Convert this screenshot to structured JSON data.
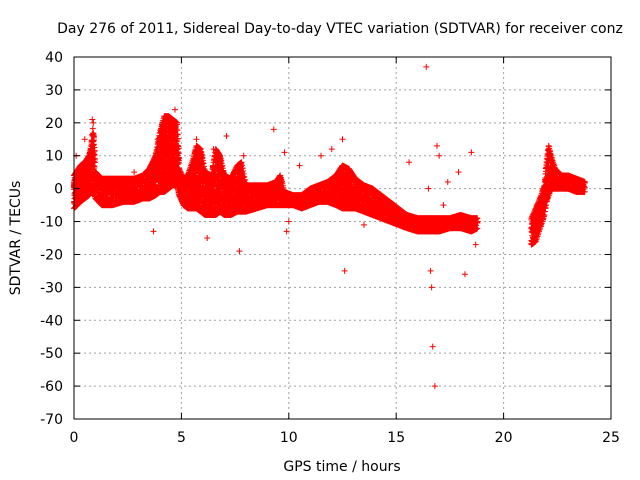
{
  "chart_data": {
    "type": "scatter",
    "title": "Day 276 of 2011, Sidereal Day-to-day VTEC variation (SDTVAR) for receiver conz",
    "xlabel": "GPS time / hours",
    "ylabel": "SDTVAR / TECUs",
    "xlim": [
      0,
      25
    ],
    "ylim": [
      -70,
      40
    ],
    "grid": true,
    "marker": "+",
    "color": "#ff0000",
    "xticks": [
      0,
      5,
      10,
      15,
      20,
      25
    ],
    "yticks": [
      -70,
      -60,
      -50,
      -40,
      -30,
      -20,
      -10,
      0,
      10,
      20,
      30,
      40
    ],
    "series": [
      {
        "name": "SDTVAR",
        "band": [
          [
            0.0,
            -6,
            4
          ],
          [
            0.3,
            -4,
            7
          ],
          [
            0.5,
            -3,
            8
          ],
          [
            0.7,
            -2,
            10
          ],
          [
            0.8,
            -1,
            13
          ],
          [
            0.9,
            -1,
            20
          ],
          [
            1.0,
            -3,
            5
          ],
          [
            1.3,
            -5,
            3
          ],
          [
            1.8,
            -5,
            3
          ],
          [
            2.3,
            -4,
            3
          ],
          [
            2.8,
            -4,
            3
          ],
          [
            3.2,
            -3,
            4
          ],
          [
            3.5,
            -3,
            6
          ],
          [
            3.8,
            -2,
            10
          ],
          [
            4.0,
            -1,
            17
          ],
          [
            4.2,
            -1,
            22
          ],
          [
            4.4,
            0,
            22
          ],
          [
            4.6,
            1,
            21
          ],
          [
            4.8,
            1,
            20
          ],
          [
            4.9,
            -2,
            6
          ],
          [
            5.1,
            -5,
            3
          ],
          [
            5.3,
            -6,
            4
          ],
          [
            5.5,
            -6,
            8
          ],
          [
            5.7,
            -6,
            13
          ],
          [
            5.9,
            -7,
            12
          ],
          [
            6.1,
            -8,
            5
          ],
          [
            6.4,
            -8,
            4
          ],
          [
            6.6,
            -8,
            12
          ],
          [
            6.8,
            -7,
            10
          ],
          [
            7.0,
            -8,
            4
          ],
          [
            7.3,
            -8,
            3
          ],
          [
            7.6,
            -7,
            7
          ],
          [
            7.8,
            -7,
            8
          ],
          [
            8.0,
            -7,
            1
          ],
          [
            8.5,
            -6,
            1
          ],
          [
            9.0,
            -5,
            1
          ],
          [
            9.4,
            -5,
            2
          ],
          [
            9.6,
            -5,
            4
          ],
          [
            9.8,
            -5,
            -1
          ],
          [
            10.2,
            -5,
            -2
          ],
          [
            10.6,
            -6,
            -2
          ],
          [
            11.0,
            -5,
            0
          ],
          [
            11.4,
            -4,
            1
          ],
          [
            11.8,
            -4,
            2
          ],
          [
            12.2,
            -5,
            4
          ],
          [
            12.5,
            -6,
            7
          ],
          [
            12.8,
            -6,
            6
          ],
          [
            13.1,
            -6,
            3
          ],
          [
            13.5,
            -7,
            1
          ],
          [
            13.9,
            -8,
            0
          ],
          [
            14.3,
            -9,
            -2
          ],
          [
            14.7,
            -10,
            -4
          ],
          [
            15.1,
            -11,
            -6
          ],
          [
            15.5,
            -12,
            -8
          ],
          [
            16.0,
            -13,
            -9
          ],
          [
            16.5,
            -13,
            -9
          ],
          [
            17.0,
            -13,
            -9
          ],
          [
            17.5,
            -12,
            -9
          ],
          [
            18.0,
            -12,
            -8
          ],
          [
            18.5,
            -13,
            -9
          ],
          [
            18.8,
            -12,
            -9
          ],
          [
            21.3,
            -17,
            -9
          ],
          [
            21.5,
            -16,
            -6
          ],
          [
            21.7,
            -12,
            -3
          ],
          [
            21.9,
            -8,
            1
          ],
          [
            22.0,
            -4,
            8
          ],
          [
            22.1,
            -2,
            13
          ],
          [
            22.2,
            0,
            10
          ],
          [
            22.4,
            0,
            6
          ],
          [
            22.7,
            0,
            4
          ],
          [
            23.0,
            0,
            4
          ],
          [
            23.4,
            -1,
            3
          ],
          [
            23.8,
            -1,
            2
          ]
        ],
        "outliers": [
          [
            0.1,
            10
          ],
          [
            0.5,
            15
          ],
          [
            0.85,
            21
          ],
          [
            2.8,
            5
          ],
          [
            3.7,
            -13
          ],
          [
            3.9,
            15
          ],
          [
            4.7,
            24
          ],
          [
            5.7,
            15
          ],
          [
            6.2,
            -15
          ],
          [
            6.5,
            12
          ],
          [
            7.1,
            16
          ],
          [
            7.7,
            -19
          ],
          [
            7.9,
            10
          ],
          [
            9.3,
            18
          ],
          [
            9.8,
            11
          ],
          [
            9.9,
            -13
          ],
          [
            10.0,
            -10
          ],
          [
            10.5,
            7
          ],
          [
            11.5,
            10
          ],
          [
            12.0,
            12
          ],
          [
            12.5,
            15
          ],
          [
            12.6,
            -25
          ],
          [
            13.5,
            -11
          ],
          [
            15.6,
            8
          ],
          [
            16.4,
            37
          ],
          [
            16.6,
            -25
          ],
          [
            16.65,
            -30
          ],
          [
            16.7,
            -48
          ],
          [
            16.8,
            -60
          ],
          [
            16.9,
            13
          ],
          [
            17.0,
            10
          ],
          [
            17.4,
            2
          ],
          [
            17.9,
            5
          ],
          [
            18.2,
            -26
          ],
          [
            18.5,
            11
          ],
          [
            18.7,
            -17
          ],
          [
            16.5,
            0
          ],
          [
            17.2,
            -5
          ]
        ]
      }
    ]
  }
}
